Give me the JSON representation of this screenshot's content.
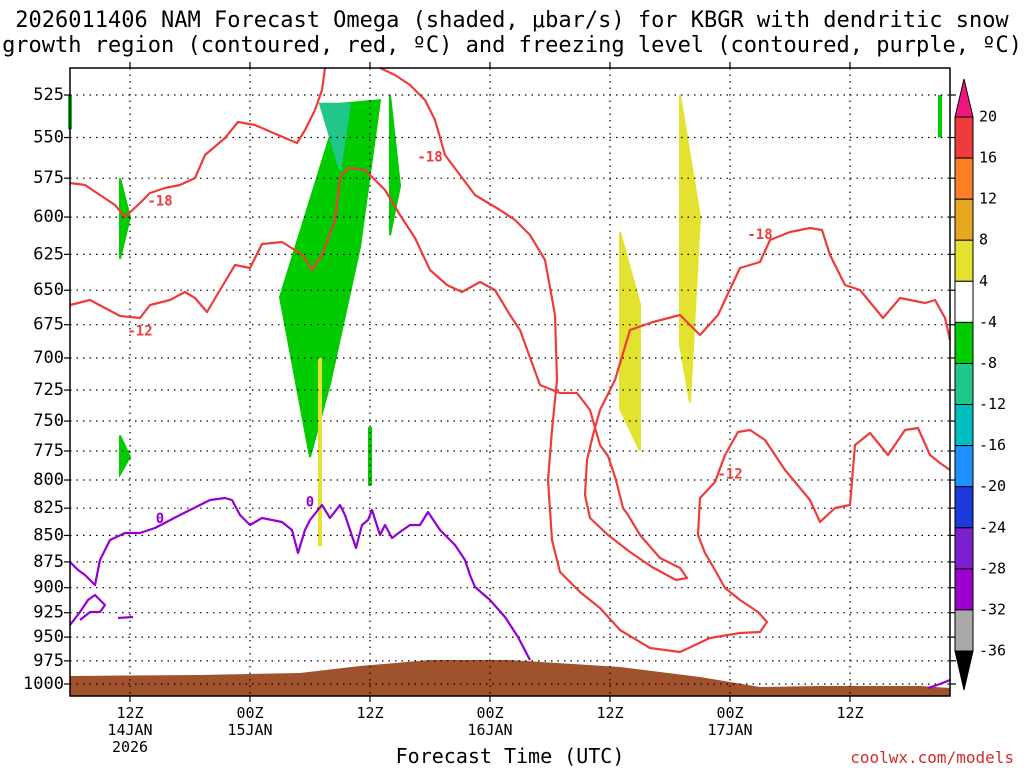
{
  "title_line1": "2026011406 NAM Forecast Omega (shaded, μbar/s) for KBGR with dendritic snow",
  "title_line2": "growth region (contoured, red, ºC) and freezing level (contoured, purple, ºC)",
  "xlabel": "Forecast Time (UTC)",
  "credit": "coolwx.com/models",
  "colors": {
    "dendritic_contour": "#ee3b3b",
    "freezing_contour": "#9400d3",
    "terrain": "#a0522d",
    "grid": "#000000"
  },
  "chart_data": {
    "type": "heatmap",
    "title": "2026011406 NAM Forecast Omega (shaded, μbar/s) for KBGR with dendritic snow growth region (contoured, red, ºC) and freezing level (contoured, purple, ºC)",
    "xlabel": "Forecast Time (UTC)",
    "ylabel": "",
    "y_scale": "pressure (reversed)",
    "ylim": [
      1000,
      525
    ],
    "y_ticks": [
      525,
      550,
      575,
      600,
      625,
      650,
      675,
      700,
      725,
      750,
      775,
      800,
      825,
      850,
      875,
      900,
      925,
      950,
      975,
      1000
    ],
    "x_range": [
      "2026-01-14 06Z",
      "2026-01-17 22Z"
    ],
    "x_ticks": [
      {
        "time": "2026-01-14 12Z",
        "label": [
          "12Z",
          "14JAN",
          "2026"
        ]
      },
      {
        "time": "2026-01-15 00Z",
        "label": [
          "00Z",
          "15JAN"
        ]
      },
      {
        "time": "2026-01-15 12Z",
        "label": [
          "12Z"
        ]
      },
      {
        "time": "2026-01-16 00Z",
        "label": [
          "00Z",
          "16JAN"
        ]
      },
      {
        "time": "2026-01-16 12Z",
        "label": [
          "12Z"
        ]
      },
      {
        "time": "2026-01-17 00Z",
        "label": [
          "00Z",
          "17JAN"
        ]
      },
      {
        "time": "2026-01-17 12Z",
        "label": [
          "12Z"
        ]
      }
    ],
    "grid": true,
    "colorbar": {
      "levels": [
        "20",
        "16",
        "12",
        "8",
        "4",
        "-4",
        "-8",
        "-12",
        "-16",
        "-20",
        "-24",
        "-28",
        "-32",
        "-36"
      ],
      "colors": [
        "#f0167f",
        "#ee3b3b",
        "#ff7f24",
        "#e5a820",
        "#e3e32f",
        "#ffffff",
        "#00cc00",
        "#21c68a",
        "#00bebe",
        "#1e90ff",
        "#1c39db",
        "#7b1fcf",
        "#9b00cc",
        "#a9a9a9",
        "#000000"
      ]
    },
    "omega_regions": [
      {
        "value": "-4 to -8",
        "color": "#00cc00",
        "points": [
          [
            "2026-01-14 06Z",
            525
          ],
          [
            "2026-01-14 06Z",
            545
          ]
        ]
      },
      {
        "value": "-4 to -8",
        "color": "#00cc00",
        "points": [
          [
            "2026-01-14 11Z",
            575
          ],
          [
            "2026-01-14 12Z",
            600
          ],
          [
            "2026-01-14 11Z",
            628
          ]
        ]
      },
      {
        "value": "-4 to -8",
        "color": "#00cc00",
        "points": [
          [
            "2026-01-14 11Z",
            762
          ],
          [
            "2026-01-14 12Z",
            780
          ],
          [
            "2026-01-14 11Z",
            795
          ]
        ]
      },
      {
        "value": "-4 to -8",
        "color": "#00cc00",
        "points": [
          [
            "2026-01-15 09Z",
            530
          ],
          [
            "2026-01-15 13Z",
            528
          ],
          [
            "2026-01-15 11Z",
            620
          ],
          [
            "2026-01-15 08Z",
            720
          ],
          [
            "2026-01-15 06Z",
            780
          ],
          [
            "2026-01-15 03Z",
            655
          ]
        ]
      },
      {
        "value": "-8 to -12",
        "color": "#21c68a",
        "points": [
          [
            "2026-01-15 07Z",
            530
          ],
          [
            "2026-01-15 10Z",
            530
          ],
          [
            "2026-01-15 09Z",
            570
          ]
        ]
      },
      {
        "value": "-4 to -8",
        "color": "#00cc00",
        "points": [
          [
            "2026-01-15 14Z",
            525
          ],
          [
            "2026-01-15 15Z",
            580
          ],
          [
            "2026-01-15 14Z",
            612
          ]
        ]
      },
      {
        "value": "-4 to -8",
        "color": "#00cc00",
        "points": [
          [
            "2026-01-15 12Z",
            755
          ],
          [
            "2026-01-15 12Z",
            805
          ]
        ]
      },
      {
        "value": "4 to 8",
        "color": "#e3e32f",
        "points": [
          [
            "2026-01-15 07Z",
            700
          ],
          [
            "2026-01-15 07Z",
            860
          ]
        ]
      },
      {
        "value": "4 to 8",
        "color": "#e3e32f",
        "points": [
          [
            "2026-01-16 13Z",
            610
          ],
          [
            "2026-01-16 15Z",
            660
          ],
          [
            "2026-01-16 15Z",
            775
          ],
          [
            "2026-01-16 13Z",
            740
          ]
        ]
      },
      {
        "value": "4 to 8",
        "color": "#e3e32f",
        "points": [
          [
            "2026-01-16 19Z",
            525
          ],
          [
            "2026-01-16 21Z",
            600
          ],
          [
            "2026-01-16 20Z",
            735
          ],
          [
            "2026-01-16 19Z",
            690
          ]
        ]
      },
      {
        "value": "-4 to -8",
        "color": "#00cc00",
        "points": [
          [
            "2026-01-17 21Z",
            525
          ],
          [
            "2026-01-17 21Z",
            550
          ]
        ]
      }
    ],
    "contour_labels": [
      {
        "text": "-18",
        "color": "#ee3b3b",
        "time": "2026-01-14 15Z",
        "pressure": 590
      },
      {
        "text": "-12",
        "color": "#ee3b3b",
        "time": "2026-01-14 13Z",
        "pressure": 680
      },
      {
        "text": "-18",
        "color": "#ee3b3b",
        "time": "2026-01-15 18Z",
        "pressure": 562
      },
      {
        "text": "-18",
        "color": "#ee3b3b",
        "time": "2026-01-17 03Z",
        "pressure": 612
      },
      {
        "text": "-12",
        "color": "#ee3b3b",
        "time": "2026-01-17 00Z",
        "pressure": 795
      },
      {
        "text": "0",
        "color": "#9400d3",
        "time": "2026-01-14 15Z",
        "pressure": 835
      },
      {
        "text": "0",
        "color": "#9400d3",
        "time": "2026-01-15 06Z",
        "pressure": 820
      }
    ]
  }
}
